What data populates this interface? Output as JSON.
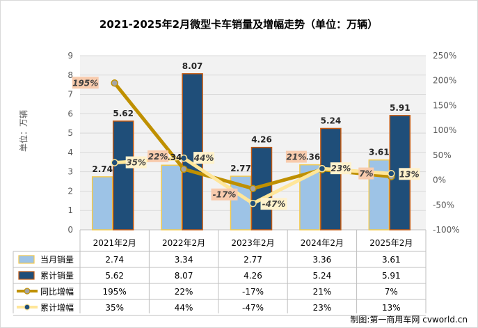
{
  "chart_data": {
    "type": "bar",
    "title": "2021-2025年2月微型卡车销量及增幅走势（单位：万辆）",
    "ylabel": "单位：万辆",
    "ylim": [
      0,
      9
    ],
    "y_ticks": [
      "0",
      "1",
      "2",
      "3",
      "4",
      "5",
      "6",
      "7",
      "8",
      "9"
    ],
    "y2lim": [
      -100,
      250
    ],
    "y2_ticks": [
      "-100%",
      "-50%",
      "0%",
      "50%",
      "100%",
      "150%",
      "200%",
      "250%"
    ],
    "categories": [
      "2021年2月",
      "2022年2月",
      "2023年2月",
      "2024年2月",
      "2025年2月"
    ],
    "series": [
      {
        "name": "当月销量",
        "type": "bar",
        "axis": "left",
        "color": "#9dc3e6",
        "border": "#f2c94c",
        "values": [
          2.74,
          3.34,
          2.77,
          3.36,
          3.61
        ],
        "labels": [
          "2.74",
          "3.34",
          "2.77",
          "3.36",
          "3.61"
        ]
      },
      {
        "name": "累计销量",
        "type": "bar",
        "axis": "left",
        "color": "#1f4e79",
        "border": "#c55a11",
        "values": [
          5.62,
          8.07,
          4.26,
          5.24,
          5.91
        ],
        "labels": [
          "5.62",
          "8.07",
          "4.26",
          "5.24",
          "5.91"
        ]
      },
      {
        "name": "同比增幅",
        "type": "line",
        "axis": "right",
        "color": "#bf9000",
        "marker": "#a5a5a5",
        "values": [
          195,
          22,
          -17,
          21,
          7
        ],
        "labels": [
          "195%",
          "22%",
          "-17%",
          "21%",
          "7%"
        ]
      },
      {
        "name": "累计增幅",
        "type": "line",
        "axis": "right",
        "color": "#ffe699",
        "marker": "#1f4e79",
        "values": [
          35,
          44,
          -47,
          23,
          13
        ],
        "labels": [
          "35%",
          "44%",
          "-47%",
          "23%",
          "13%"
        ]
      }
    ],
    "table": {
      "rows": [
        [
          "2.74",
          "3.34",
          "2.77",
          "3.36",
          "3.61"
        ],
        [
          "5.62",
          "8.07",
          "4.26",
          "5.24",
          "5.91"
        ],
        [
          "195%",
          "22%",
          "-17%",
          "21%",
          "7%"
        ],
        [
          "35%",
          "44%",
          "-47%",
          "23%",
          "13%"
        ]
      ]
    },
    "source": "制图:第一商用车网 cvworld.cn",
    "grid": true,
    "legend": "bottom-table"
  }
}
